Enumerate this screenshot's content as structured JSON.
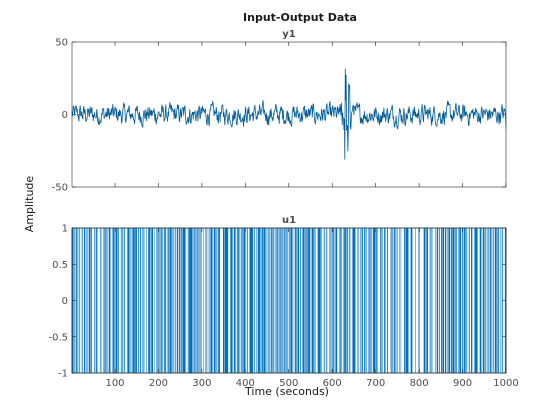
{
  "figure": {
    "title": "Input-Output Data",
    "xlabel": "Time (seconds)",
    "ylabel": "Amplitude"
  },
  "colors": {
    "series": "#005b96",
    "bar": "#0072bd",
    "axes": "#262626",
    "text": "#4d4d4d"
  },
  "chart_data": [
    {
      "type": "line",
      "title": "y1",
      "xlim": [
        1,
        1000
      ],
      "ylim": [
        -50,
        50
      ],
      "yticks": [
        -50,
        0,
        50
      ],
      "xticks": [
        100,
        200,
        300,
        400,
        500,
        600,
        700,
        800,
        900,
        1000
      ],
      "series": [
        {
          "x_start": 1,
          "x_end": 1000,
          "typical_range": [
            -10,
            10
          ],
          "burst": {
            "x": [
              615,
              650
            ],
            "min": -45,
            "max": 45
          },
          "final_value": -10
        }
      ],
      "grid": false
    },
    {
      "type": "bar",
      "title": "u1",
      "xlim": [
        1,
        1000
      ],
      "ylim": [
        -1,
        1
      ],
      "yticks": [
        -1,
        -0.5,
        0,
        0.5,
        1
      ],
      "xticks": [
        100,
        200,
        300,
        400,
        500,
        600,
        700,
        800,
        900,
        1000
      ],
      "xticklabels": [
        "100",
        "200",
        "300",
        "400",
        "500",
        "600",
        "700",
        "800",
        "900",
        "1000"
      ],
      "signal": "binary",
      "levels": [
        -1,
        1
      ],
      "grid": false
    }
  ]
}
